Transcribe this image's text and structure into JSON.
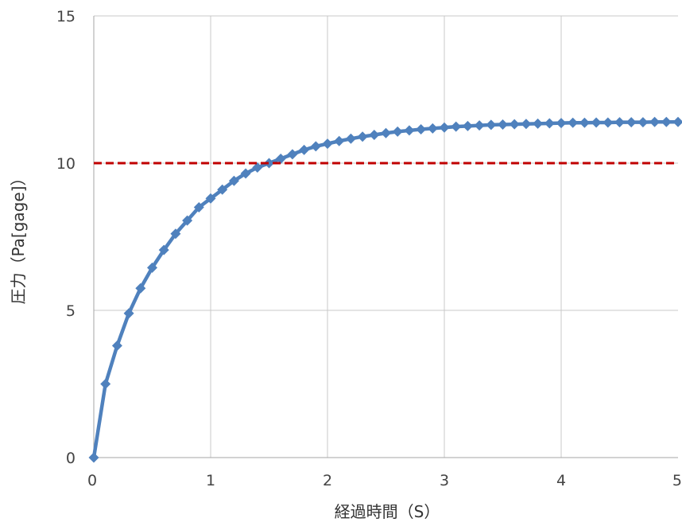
{
  "chart_data": {
    "type": "line",
    "xlabel": "経過時間（S）",
    "ylabel": "圧力（Pa[gage]）",
    "xlim": [
      0,
      5
    ],
    "ylim": [
      0,
      15
    ],
    "x_ticks": [
      "0",
      "1",
      "2",
      "3",
      "4",
      "5"
    ],
    "y_ticks": [
      "0",
      "5",
      "10",
      "15"
    ],
    "grid": true,
    "series": [
      {
        "color": "#4f81bd",
        "marker": "diamond",
        "x": [
          0,
          0.1,
          0.2,
          0.3,
          0.4,
          0.5,
          0.6,
          0.7,
          0.8,
          0.9,
          1.0,
          1.1,
          1.2,
          1.3,
          1.4,
          1.5,
          1.6,
          1.7,
          1.8,
          1.9,
          2.0,
          2.1,
          2.2,
          2.3,
          2.4,
          2.5,
          2.6,
          2.7,
          2.8,
          2.9,
          3.0,
          3.1,
          3.2,
          3.3,
          3.4,
          3.5,
          3.6,
          3.7,
          3.8,
          3.9,
          4.0,
          4.1,
          4.2,
          4.3,
          4.4,
          4.5,
          4.6,
          4.7,
          4.8,
          4.9,
          5.0
        ],
        "y": [
          0,
          2.5,
          3.8,
          4.9,
          5.75,
          6.45,
          7.05,
          7.6,
          8.05,
          8.5,
          8.8,
          9.1,
          9.4,
          9.65,
          9.85,
          10.0,
          10.15,
          10.3,
          10.45,
          10.57,
          10.66,
          10.75,
          10.83,
          10.9,
          10.96,
          11.02,
          11.07,
          11.11,
          11.15,
          11.18,
          11.21,
          11.24,
          11.26,
          11.28,
          11.3,
          11.31,
          11.32,
          11.33,
          11.34,
          11.35,
          11.36,
          11.37,
          11.37,
          11.38,
          11.38,
          11.39,
          11.39,
          11.39,
          11.4,
          11.4,
          11.4
        ]
      },
      {
        "color": "#c00000",
        "style": "dashed",
        "x": [
          0,
          5
        ],
        "y": [
          10,
          10
        ]
      }
    ]
  }
}
